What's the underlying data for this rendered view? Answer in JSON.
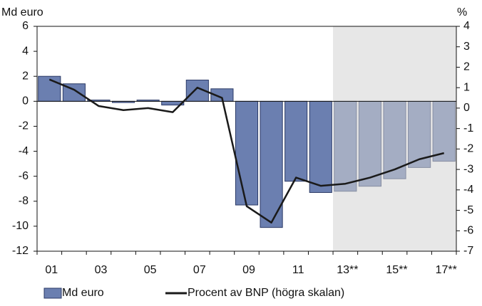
{
  "chart_data": {
    "type": "bar",
    "y_label": "Md euro",
    "y2_label": "%",
    "categories": [
      "01",
      null,
      "03",
      null,
      "05",
      null,
      "07",
      null,
      "09",
      null,
      "11",
      null,
      "13**",
      null,
      "15**",
      null,
      "17**"
    ],
    "series": [
      {
        "name": "Md euro",
        "type": "bar",
        "color": "#6b7fb0",
        "values": [
          2.0,
          1.4,
          0.1,
          -0.1,
          0.1,
          -0.3,
          1.7,
          1.0,
          -8.3,
          -10.1,
          -6.4,
          -7.3,
          -7.2,
          -6.8,
          -6.2,
          -5.3,
          -4.8
        ]
      },
      {
        "name": "Procent av BNP (högra skalan)",
        "type": "line",
        "axis": "y2",
        "color": "#1a1a1a",
        "values": [
          1.4,
          0.9,
          0.1,
          -0.1,
          0.0,
          -0.2,
          1.0,
          0.5,
          -4.8,
          -5.6,
          -3.4,
          -3.8,
          -3.7,
          -3.4,
          -3.0,
          -2.5,
          -2.2
        ]
      }
    ],
    "ylim": [
      -12,
      6
    ],
    "yticks": [
      -12,
      -10,
      -8,
      -6,
      -4,
      -2,
      0,
      2,
      4,
      6
    ],
    "y2lim": [
      -7,
      4
    ],
    "y2ticks": [
      -7,
      -6,
      -5,
      -4,
      -3,
      -2,
      -1,
      0,
      1,
      2,
      3,
      4
    ],
    "shade_from_category": 12,
    "shade_color": "#d4d4d4",
    "grid": false,
    "legend": "bottom"
  }
}
